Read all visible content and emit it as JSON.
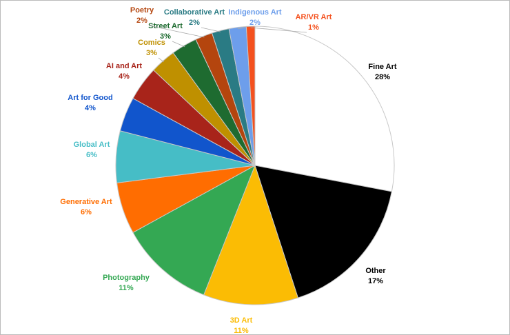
{
  "chart_data": {
    "type": "pie",
    "categories": [
      "Fine Art",
      "Other",
      "3D Art",
      "Photography",
      "Generative Art",
      "Global Art",
      "Art for Good",
      "AI and Art",
      "Comics",
      "Street Art",
      "Poetry",
      "Collaborative Art",
      "Indigenous Art",
      "AR/VR Art"
    ],
    "values": [
      28,
      17,
      11,
      11,
      6,
      6,
      4,
      4,
      3,
      3,
      2,
      2,
      2,
      1
    ],
    "value_labels": [
      "28%",
      "17%",
      "11%",
      "11%",
      "6%",
      "6%",
      "4%",
      "4%",
      "3%",
      "3%",
      "2%",
      "2%",
      "2%",
      "1%"
    ],
    "colors": [
      "#ffffff",
      "#000000",
      "#fbbc04",
      "#34a853",
      "#ff6d01",
      "#46bdc6",
      "#1155cc",
      "#a8241a",
      "#bf9000",
      "#1e6b30",
      "#b4450e",
      "#2a7b84",
      "#6d9eeb",
      "#f4511e"
    ]
  }
}
